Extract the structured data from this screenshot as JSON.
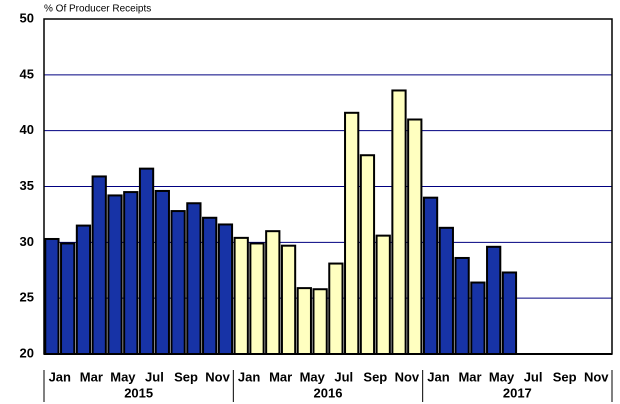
{
  "chart_data": {
    "type": "bar",
    "y_axis_label": "% Of Producer Receipts",
    "categories": [
      "Jan",
      null,
      "Mar",
      null,
      "May",
      null,
      "Jul",
      null,
      "Sep",
      null,
      "Nov",
      null
    ],
    "groups": [
      {
        "name": "2015",
        "color": "#1733a6",
        "values": [
          30.3,
          29.9,
          31.5,
          35.9,
          34.2,
          34.5,
          36.6,
          34.6,
          32.8,
          33.5,
          32.2,
          31.6
        ]
      },
      {
        "name": "2016",
        "color": "#ffffc0",
        "values": [
          30.4,
          29.9,
          31.0,
          29.7,
          25.9,
          25.8,
          28.1,
          41.6,
          37.8,
          30.6,
          43.6,
          41.0
        ]
      },
      {
        "name": "2017",
        "color": "#1733a6",
        "values": [
          34.0,
          31.3,
          28.6,
          26.4,
          29.6,
          27.3,
          null,
          null,
          null,
          null,
          null,
          null
        ]
      }
    ],
    "ylim": [
      20,
      50
    ],
    "yticks": [
      20,
      25,
      30,
      35,
      40,
      45,
      50
    ],
    "grid": true,
    "grid_color": "#000080"
  }
}
